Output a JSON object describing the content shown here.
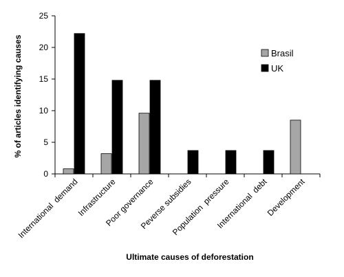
{
  "chart_data": {
    "type": "bar",
    "title": "",
    "xlabel": "Ultimate causes of deforestation",
    "ylabel": "% of articles identifying causes",
    "categories": [
      "International  demand",
      "Infrastructure",
      "Poor governance",
      "Peverse subsidies",
      "Population  pressure",
      "International  debt",
      "Development"
    ],
    "series": [
      {
        "name": "Brasil",
        "color": "#a6a6a6",
        "values": [
          0.8,
          3.2,
          9.6,
          0,
          0,
          0,
          8.5
        ]
      },
      {
        "name": "UK",
        "color": "#000000",
        "values": [
          22.2,
          14.8,
          14.8,
          3.7,
          3.7,
          3.7,
          0
        ]
      }
    ],
    "ylim": [
      0,
      25
    ],
    "yticks": [
      0,
      5,
      10,
      15,
      20,
      25
    ],
    "grid": false,
    "legend_position": "right"
  }
}
